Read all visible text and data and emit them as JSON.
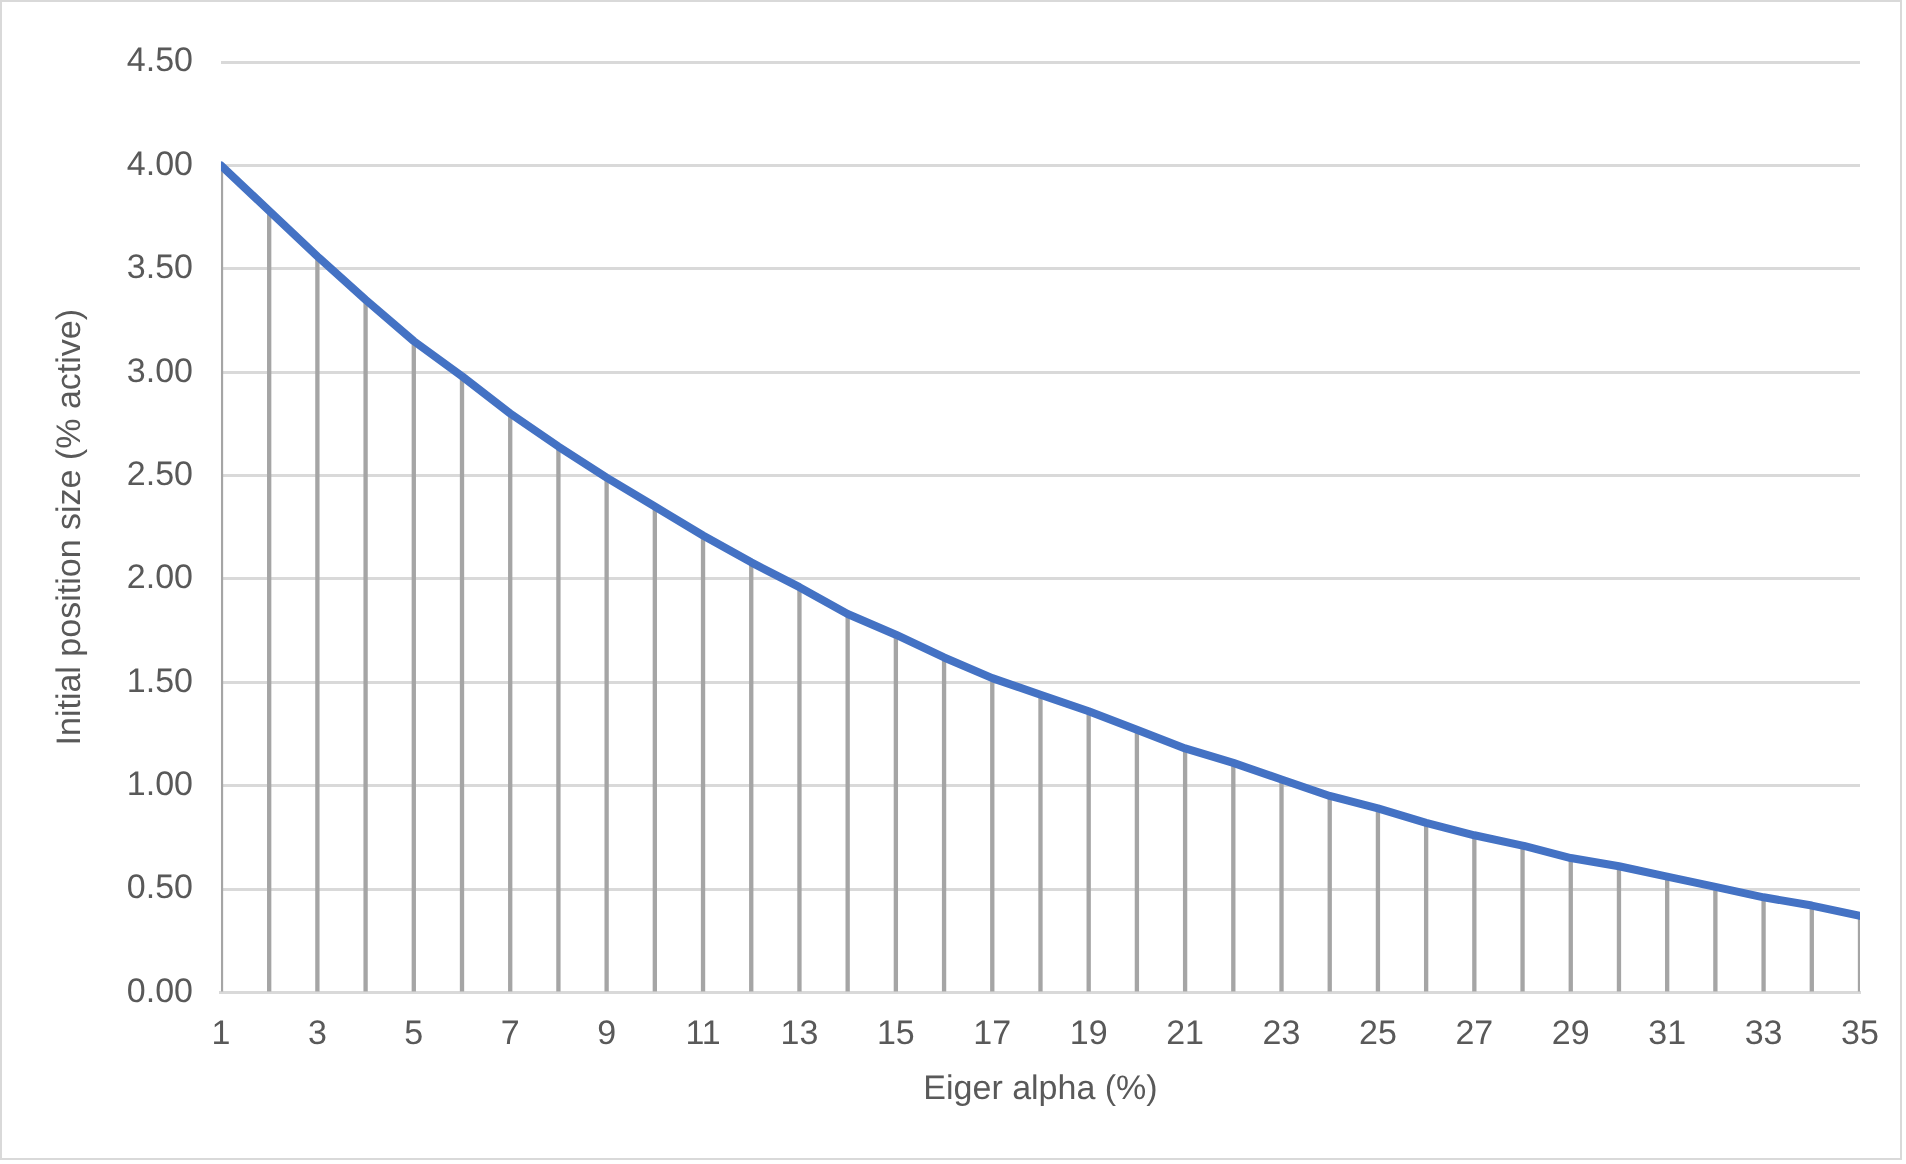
{
  "chart_data": {
    "type": "line",
    "xlabel": "Eiger alpha (%)",
    "ylabel": "Initial position size (% active)",
    "x": [
      1,
      2,
      3,
      4,
      5,
      6,
      7,
      8,
      9,
      10,
      11,
      12,
      13,
      14,
      15,
      16,
      17,
      18,
      19,
      20,
      21,
      22,
      23,
      24,
      25,
      26,
      27,
      28,
      29,
      30,
      31,
      32,
      33,
      34,
      35
    ],
    "xlim": [
      1,
      35
    ],
    "xticks": [
      1,
      3,
      5,
      7,
      9,
      11,
      13,
      15,
      17,
      19,
      21,
      23,
      25,
      27,
      29,
      31,
      33,
      35
    ],
    "series": [
      {
        "type": "bar",
        "color": "#a5a5a5",
        "values": [
          4.0,
          3.78,
          3.56,
          3.35,
          3.15,
          2.98,
          2.8,
          2.64,
          2.49,
          2.35,
          2.21,
          2.08,
          1.96,
          1.83,
          1.73,
          1.62,
          1.52,
          1.44,
          1.36,
          1.27,
          1.18,
          1.11,
          1.03,
          0.95,
          0.89,
          0.82,
          0.76,
          0.71,
          0.65,
          0.61,
          0.56,
          0.51,
          0.46,
          0.42,
          0.37
        ]
      },
      {
        "color": "#4472c4",
        "values": [
          4.0,
          3.78,
          3.56,
          3.35,
          3.15,
          2.98,
          2.8,
          2.64,
          2.49,
          2.35,
          2.21,
          2.08,
          1.96,
          1.83,
          1.73,
          1.62,
          1.52,
          1.44,
          1.36,
          1.27,
          1.18,
          1.11,
          1.03,
          0.95,
          0.89,
          0.82,
          0.76,
          0.71,
          0.65,
          0.61,
          0.56,
          0.51,
          0.46,
          0.42,
          0.37
        ]
      }
    ],
    "ylim": [
      0,
      4.5
    ],
    "yticks": [
      {
        "value": 0,
        "label": "0.00"
      },
      {
        "value": 0.5,
        "label": "0.50"
      },
      {
        "value": 1,
        "label": "1.00"
      },
      {
        "value": 1.5,
        "label": "1.50"
      },
      {
        "value": 2,
        "label": "2.00"
      },
      {
        "value": 2.5,
        "label": "2.50"
      },
      {
        "value": 3,
        "label": "3.00"
      },
      {
        "value": 3.5,
        "label": "3.50"
      },
      {
        "value": 4,
        "label": "4.00"
      },
      {
        "value": 4.5,
        "label": "4.50"
      }
    ],
    "grid": "y",
    "marker": "none",
    "line_style": "solid",
    "legend": false
  }
}
